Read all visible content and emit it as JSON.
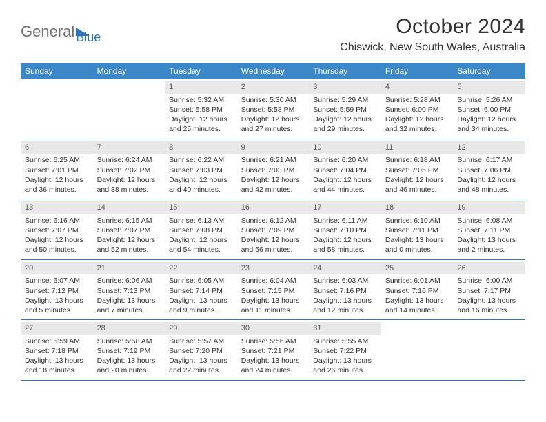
{
  "logo": {
    "general": "General",
    "blue": "Blue"
  },
  "title": "October 2024",
  "location": "Chiswick, New South Wales, Australia",
  "colors": {
    "header_bg": "#3b87c8",
    "row_border": "#2f74b5",
    "daynum_bg": "#e8e8e8",
    "text": "#333333",
    "logo_gray": "#707070",
    "logo_blue": "#2f74b5",
    "background": "#ffffff"
  },
  "day_headers": [
    "Sunday",
    "Monday",
    "Tuesday",
    "Wednesday",
    "Thursday",
    "Friday",
    "Saturday"
  ],
  "weeks": [
    [
      {
        "day": "",
        "sunrise": "",
        "sunset": "",
        "daylight1": "",
        "daylight2": ""
      },
      {
        "day": "",
        "sunrise": "",
        "sunset": "",
        "daylight1": "",
        "daylight2": ""
      },
      {
        "day": "1",
        "sunrise": "Sunrise: 5:32 AM",
        "sunset": "Sunset: 5:58 PM",
        "daylight1": "Daylight: 12 hours",
        "daylight2": "and 25 minutes."
      },
      {
        "day": "2",
        "sunrise": "Sunrise: 5:30 AM",
        "sunset": "Sunset: 5:58 PM",
        "daylight1": "Daylight: 12 hours",
        "daylight2": "and 27 minutes."
      },
      {
        "day": "3",
        "sunrise": "Sunrise: 5:29 AM",
        "sunset": "Sunset: 5:59 PM",
        "daylight1": "Daylight: 12 hours",
        "daylight2": "and 29 minutes."
      },
      {
        "day": "4",
        "sunrise": "Sunrise: 5:28 AM",
        "sunset": "Sunset: 6:00 PM",
        "daylight1": "Daylight: 12 hours",
        "daylight2": "and 32 minutes."
      },
      {
        "day": "5",
        "sunrise": "Sunrise: 5:26 AM",
        "sunset": "Sunset: 6:00 PM",
        "daylight1": "Daylight: 12 hours",
        "daylight2": "and 34 minutes."
      }
    ],
    [
      {
        "day": "6",
        "sunrise": "Sunrise: 6:25 AM",
        "sunset": "Sunset: 7:01 PM",
        "daylight1": "Daylight: 12 hours",
        "daylight2": "and 36 minutes."
      },
      {
        "day": "7",
        "sunrise": "Sunrise: 6:24 AM",
        "sunset": "Sunset: 7:02 PM",
        "daylight1": "Daylight: 12 hours",
        "daylight2": "and 38 minutes."
      },
      {
        "day": "8",
        "sunrise": "Sunrise: 6:22 AM",
        "sunset": "Sunset: 7:03 PM",
        "daylight1": "Daylight: 12 hours",
        "daylight2": "and 40 minutes."
      },
      {
        "day": "9",
        "sunrise": "Sunrise: 6:21 AM",
        "sunset": "Sunset: 7:03 PM",
        "daylight1": "Daylight: 12 hours",
        "daylight2": "and 42 minutes."
      },
      {
        "day": "10",
        "sunrise": "Sunrise: 6:20 AM",
        "sunset": "Sunset: 7:04 PM",
        "daylight1": "Daylight: 12 hours",
        "daylight2": "and 44 minutes."
      },
      {
        "day": "11",
        "sunrise": "Sunrise: 6:18 AM",
        "sunset": "Sunset: 7:05 PM",
        "daylight1": "Daylight: 12 hours",
        "daylight2": "and 46 minutes."
      },
      {
        "day": "12",
        "sunrise": "Sunrise: 6:17 AM",
        "sunset": "Sunset: 7:06 PM",
        "daylight1": "Daylight: 12 hours",
        "daylight2": "and 48 minutes."
      }
    ],
    [
      {
        "day": "13",
        "sunrise": "Sunrise: 6:16 AM",
        "sunset": "Sunset: 7:07 PM",
        "daylight1": "Daylight: 12 hours",
        "daylight2": "and 50 minutes."
      },
      {
        "day": "14",
        "sunrise": "Sunrise: 6:15 AM",
        "sunset": "Sunset: 7:07 PM",
        "daylight1": "Daylight: 12 hours",
        "daylight2": "and 52 minutes."
      },
      {
        "day": "15",
        "sunrise": "Sunrise: 6:13 AM",
        "sunset": "Sunset: 7:08 PM",
        "daylight1": "Daylight: 12 hours",
        "daylight2": "and 54 minutes."
      },
      {
        "day": "16",
        "sunrise": "Sunrise: 6:12 AM",
        "sunset": "Sunset: 7:09 PM",
        "daylight1": "Daylight: 12 hours",
        "daylight2": "and 56 minutes."
      },
      {
        "day": "17",
        "sunrise": "Sunrise: 6:11 AM",
        "sunset": "Sunset: 7:10 PM",
        "daylight1": "Daylight: 12 hours",
        "daylight2": "and 58 minutes."
      },
      {
        "day": "18",
        "sunrise": "Sunrise: 6:10 AM",
        "sunset": "Sunset: 7:11 PM",
        "daylight1": "Daylight: 13 hours",
        "daylight2": "and 0 minutes."
      },
      {
        "day": "19",
        "sunrise": "Sunrise: 6:08 AM",
        "sunset": "Sunset: 7:11 PM",
        "daylight1": "Daylight: 13 hours",
        "daylight2": "and 2 minutes."
      }
    ],
    [
      {
        "day": "20",
        "sunrise": "Sunrise: 6:07 AM",
        "sunset": "Sunset: 7:12 PM",
        "daylight1": "Daylight: 13 hours",
        "daylight2": "and 5 minutes."
      },
      {
        "day": "21",
        "sunrise": "Sunrise: 6:06 AM",
        "sunset": "Sunset: 7:13 PM",
        "daylight1": "Daylight: 13 hours",
        "daylight2": "and 7 minutes."
      },
      {
        "day": "22",
        "sunrise": "Sunrise: 6:05 AM",
        "sunset": "Sunset: 7:14 PM",
        "daylight1": "Daylight: 13 hours",
        "daylight2": "and 9 minutes."
      },
      {
        "day": "23",
        "sunrise": "Sunrise: 6:04 AM",
        "sunset": "Sunset: 7:15 PM",
        "daylight1": "Daylight: 13 hours",
        "daylight2": "and 11 minutes."
      },
      {
        "day": "24",
        "sunrise": "Sunrise: 6:03 AM",
        "sunset": "Sunset: 7:16 PM",
        "daylight1": "Daylight: 13 hours",
        "daylight2": "and 12 minutes."
      },
      {
        "day": "25",
        "sunrise": "Sunrise: 6:01 AM",
        "sunset": "Sunset: 7:16 PM",
        "daylight1": "Daylight: 13 hours",
        "daylight2": "and 14 minutes."
      },
      {
        "day": "26",
        "sunrise": "Sunrise: 6:00 AM",
        "sunset": "Sunset: 7:17 PM",
        "daylight1": "Daylight: 13 hours",
        "daylight2": "and 16 minutes."
      }
    ],
    [
      {
        "day": "27",
        "sunrise": "Sunrise: 5:59 AM",
        "sunset": "Sunset: 7:18 PM",
        "daylight1": "Daylight: 13 hours",
        "daylight2": "and 18 minutes."
      },
      {
        "day": "28",
        "sunrise": "Sunrise: 5:58 AM",
        "sunset": "Sunset: 7:19 PM",
        "daylight1": "Daylight: 13 hours",
        "daylight2": "and 20 minutes."
      },
      {
        "day": "29",
        "sunrise": "Sunrise: 5:57 AM",
        "sunset": "Sunset: 7:20 PM",
        "daylight1": "Daylight: 13 hours",
        "daylight2": "and 22 minutes."
      },
      {
        "day": "30",
        "sunrise": "Sunrise: 5:56 AM",
        "sunset": "Sunset: 7:21 PM",
        "daylight1": "Daylight: 13 hours",
        "daylight2": "and 24 minutes."
      },
      {
        "day": "31",
        "sunrise": "Sunrise: 5:55 AM",
        "sunset": "Sunset: 7:22 PM",
        "daylight1": "Daylight: 13 hours",
        "daylight2": "and 26 minutes."
      },
      {
        "day": "",
        "sunrise": "",
        "sunset": "",
        "daylight1": "",
        "daylight2": ""
      },
      {
        "day": "",
        "sunrise": "",
        "sunset": "",
        "daylight1": "",
        "daylight2": ""
      }
    ]
  ]
}
